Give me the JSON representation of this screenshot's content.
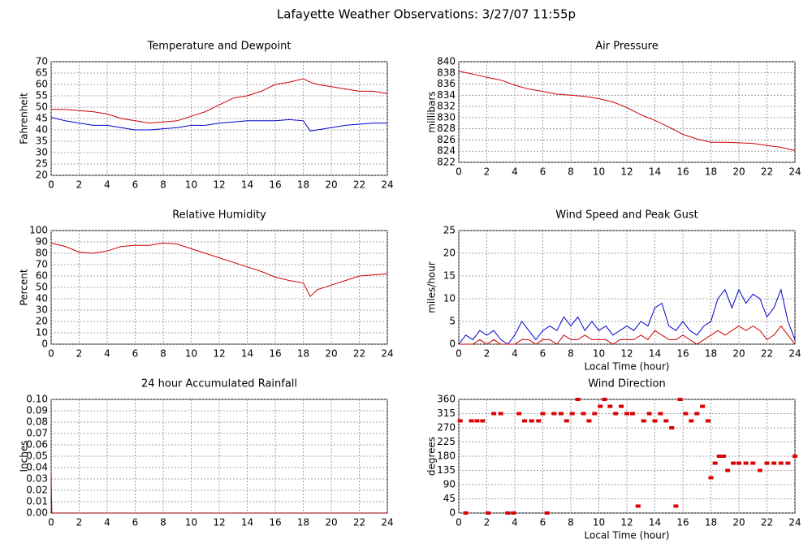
{
  "title": "Lafayette Weather Observations: 3/27/07 11:55p",
  "chart_data": [
    {
      "type": "line",
      "title": "Temperature and Dewpoint",
      "ylabel": "Fahrenheit",
      "x": [
        0,
        1,
        2,
        3,
        4,
        5,
        6,
        7,
        8,
        9,
        10,
        11,
        12,
        13,
        14,
        15,
        16,
        17,
        18,
        18.5,
        19,
        20,
        21,
        22,
        23,
        24
      ],
      "series": [
        {
          "name": "Temperature",
          "color": "#cc0000",
          "values": [
            49,
            49,
            48.5,
            48,
            47,
            45,
            44,
            43,
            43.5,
            44,
            46,
            48,
            51,
            54,
            55,
            57,
            60,
            61,
            62.5,
            61,
            60,
            59,
            58,
            57,
            57,
            56
          ]
        },
        {
          "name": "Dewpoint",
          "color": "#0000cc",
          "values": [
            45.5,
            44,
            43,
            42,
            42,
            41,
            40,
            40,
            40.5,
            41,
            42,
            42,
            43,
            43.5,
            44,
            44,
            44,
            44.5,
            44,
            39.5,
            40,
            41,
            42,
            42.5,
            43,
            43
          ]
        }
      ],
      "xlim": [
        0,
        24
      ],
      "xticks": [
        0,
        2,
        4,
        6,
        8,
        10,
        12,
        14,
        16,
        18,
        20,
        22,
        24
      ],
      "ylim": [
        20,
        70
      ],
      "yticks": [
        20,
        25,
        30,
        35,
        40,
        45,
        50,
        55,
        60,
        65,
        70
      ],
      "grid": true
    },
    {
      "type": "line",
      "title": "Air Pressure",
      "ylabel": "millibars",
      "x": [
        0,
        1,
        2,
        3,
        4,
        5,
        6,
        7,
        8,
        9,
        10,
        11,
        12,
        13,
        14,
        15,
        16,
        17,
        18,
        19,
        20,
        21,
        22,
        23,
        24
      ],
      "series": [
        {
          "name": "Air Pressure",
          "color": "#cc0000",
          "values": [
            838.3,
            837.8,
            837.2,
            836.7,
            835.8,
            835.1,
            834.7,
            834.2,
            834,
            833.8,
            833.4,
            832.8,
            831.8,
            830.5,
            829.5,
            828.3,
            827,
            826.2,
            825.6,
            825.6,
            825.5,
            825.4,
            825,
            824.7,
            824.1
          ]
        }
      ],
      "xlim": [
        0,
        24
      ],
      "xticks": [
        0,
        2,
        4,
        6,
        8,
        10,
        12,
        14,
        16,
        18,
        20,
        22,
        24
      ],
      "ylim": [
        822,
        840
      ],
      "yticks": [
        822,
        824,
        826,
        828,
        830,
        832,
        834,
        836,
        838,
        840
      ],
      "grid": true
    },
    {
      "type": "line",
      "title": "Relative Humidity",
      "ylabel": "Percent",
      "x": [
        0,
        1,
        2,
        3,
        4,
        5,
        6,
        7,
        8,
        9,
        10,
        11,
        12,
        13,
        14,
        15,
        16,
        17,
        18,
        18.5,
        19,
        20,
        21,
        22,
        23,
        24
      ],
      "series": [
        {
          "name": "Relative Humidity",
          "color": "#cc0000",
          "values": [
            89,
            86,
            81,
            80,
            82,
            86,
            87,
            87,
            89,
            88,
            84,
            80,
            76,
            72,
            68,
            64,
            59,
            56,
            54,
            42,
            48,
            52,
            56,
            60,
            61,
            62
          ]
        }
      ],
      "xlim": [
        0,
        24
      ],
      "xticks": [
        0,
        2,
        4,
        6,
        8,
        10,
        12,
        14,
        16,
        18,
        20,
        22,
        24
      ],
      "ylim": [
        0,
        100
      ],
      "yticks": [
        0,
        10,
        20,
        30,
        40,
        50,
        60,
        70,
        80,
        90,
        100
      ],
      "grid": true
    },
    {
      "type": "line",
      "title": "Wind Speed and Peak Gust",
      "ylabel": "miles/hour",
      "xlabel": "Local Time (hour)",
      "x": [
        0,
        0.5,
        1,
        1.5,
        2,
        2.5,
        3,
        3.5,
        4,
        4.5,
        5,
        5.5,
        6,
        6.5,
        7,
        7.5,
        8,
        8.5,
        9,
        9.5,
        10,
        10.5,
        11,
        11.5,
        12,
        12.5,
        13,
        13.5,
        14,
        14.5,
        15,
        15.5,
        16,
        16.5,
        17,
        17.5,
        18,
        18.5,
        19,
        19.5,
        20,
        20.5,
        21,
        21.5,
        22,
        22.5,
        23,
        23.5,
        24
      ],
      "series": [
        {
          "name": "Peak Gust",
          "color": "#0000cc",
          "values": [
            0,
            2,
            1,
            3,
            2,
            3,
            1,
            0,
            2,
            5,
            3,
            1,
            3,
            4,
            3,
            6,
            4,
            6,
            3,
            5,
            3,
            4,
            2,
            3,
            4,
            3,
            5,
            4,
            8,
            9,
            4,
            3,
            5,
            3,
            2,
            4,
            5,
            10,
            12,
            8,
            12,
            9,
            11,
            10,
            6,
            8,
            12,
            5,
            1
          ]
        },
        {
          "name": "Wind Speed",
          "color": "#cc0000",
          "values": [
            0,
            0,
            0,
            1,
            0,
            1,
            0,
            0,
            0,
            1,
            1,
            0,
            1,
            1,
            0,
            2,
            1,
            1,
            2,
            1,
            1,
            1,
            0,
            1,
            1,
            1,
            2,
            1,
            3,
            2,
            1,
            1,
            2,
            1,
            0,
            1,
            2,
            3,
            2,
            3,
            4,
            3,
            4,
            3,
            1,
            2,
            4,
            2,
            0
          ]
        }
      ],
      "xlim": [
        0,
        24
      ],
      "xticks": [
        0,
        2,
        4,
        6,
        8,
        10,
        12,
        14,
        16,
        18,
        20,
        22,
        24
      ],
      "ylim": [
        0,
        25
      ],
      "yticks": [
        0,
        5,
        10,
        15,
        20,
        25
      ],
      "grid": true
    },
    {
      "type": "line",
      "title": "24 hour Accumulated Rainfall",
      "ylabel": "Inches",
      "x": [
        0,
        0.02,
        0.05,
        24
      ],
      "series": [
        {
          "name": "Rainfall",
          "color": "#990000",
          "values": [
            0.035,
            0.018,
            0,
            0
          ]
        }
      ],
      "xlim": [
        0,
        24
      ],
      "xticks": [
        0,
        2,
        4,
        6,
        8,
        10,
        12,
        14,
        16,
        18,
        20,
        22,
        24
      ],
      "ylim": [
        0,
        0.1
      ],
      "yticks": [
        {
          "value": 0,
          "label": "0.00"
        },
        {
          "value": 0.01,
          "label": "0.01"
        },
        {
          "value": 0.02,
          "label": "0.02"
        },
        {
          "value": 0.03,
          "label": "0.03"
        },
        {
          "value": 0.04,
          "label": "0.04"
        },
        {
          "value": 0.05,
          "label": "0.05"
        },
        {
          "value": 0.06,
          "label": "0.06"
        },
        {
          "value": 0.07,
          "label": "0.07"
        },
        {
          "value": 0.08,
          "label": "0.08"
        },
        {
          "value": 0.09,
          "label": "0.09"
        },
        {
          "value": 0.1,
          "label": "0.10"
        }
      ],
      "grid": true
    },
    {
      "type": "scatter",
      "title": "Wind Direction",
      "ylabel": "degrees",
      "xlabel": "Local Time (hour)",
      "x": [
        0.1,
        0.5,
        0.9,
        1.3,
        1.7,
        2.1,
        2.5,
        3.0,
        3.5,
        3.9,
        4.3,
        4.7,
        5.2,
        5.7,
        6.0,
        6.3,
        6.8,
        7.3,
        7.7,
        8.1,
        8.5,
        8.9,
        9.3,
        9.7,
        10.1,
        10.4,
        10.8,
        11.2,
        11.6,
        12.0,
        12.4,
        12.8,
        13.2,
        13.6,
        14.0,
        14.4,
        14.8,
        15.2,
        15.5,
        15.8,
        16.2,
        16.6,
        17.0,
        17.4,
        17.8,
        18.0,
        18.3,
        18.6,
        18.9,
        19.2,
        19.6,
        20.0,
        20.5,
        21.0,
        21.5,
        22.0,
        22.5,
        23.0,
        23.5,
        24.0
      ],
      "series": [
        {
          "name": "Wind Direction",
          "color": "#dd0000",
          "values": [
            292,
            0,
            292,
            292,
            292,
            0,
            315,
            315,
            0,
            0,
            315,
            292,
            292,
            292,
            315,
            0,
            315,
            315,
            292,
            315,
            360,
            315,
            292,
            315,
            338,
            360,
            338,
            315,
            338,
            315,
            315,
            22,
            292,
            315,
            292,
            315,
            292,
            270,
            22,
            360,
            315,
            292,
            315,
            338,
            292,
            112,
            158,
            180,
            180,
            135,
            158,
            158,
            158,
            158,
            135,
            158,
            158,
            158,
            158,
            180
          ]
        }
      ],
      "xlim": [
        0,
        24
      ],
      "xticks": [
        0,
        2,
        4,
        6,
        8,
        10,
        12,
        14,
        16,
        18,
        20,
        22,
        24
      ],
      "ylim": [
        0,
        360
      ],
      "yticks": [
        0,
        45,
        90,
        135,
        180,
        225,
        270,
        315,
        360
      ],
      "grid": true
    }
  ]
}
